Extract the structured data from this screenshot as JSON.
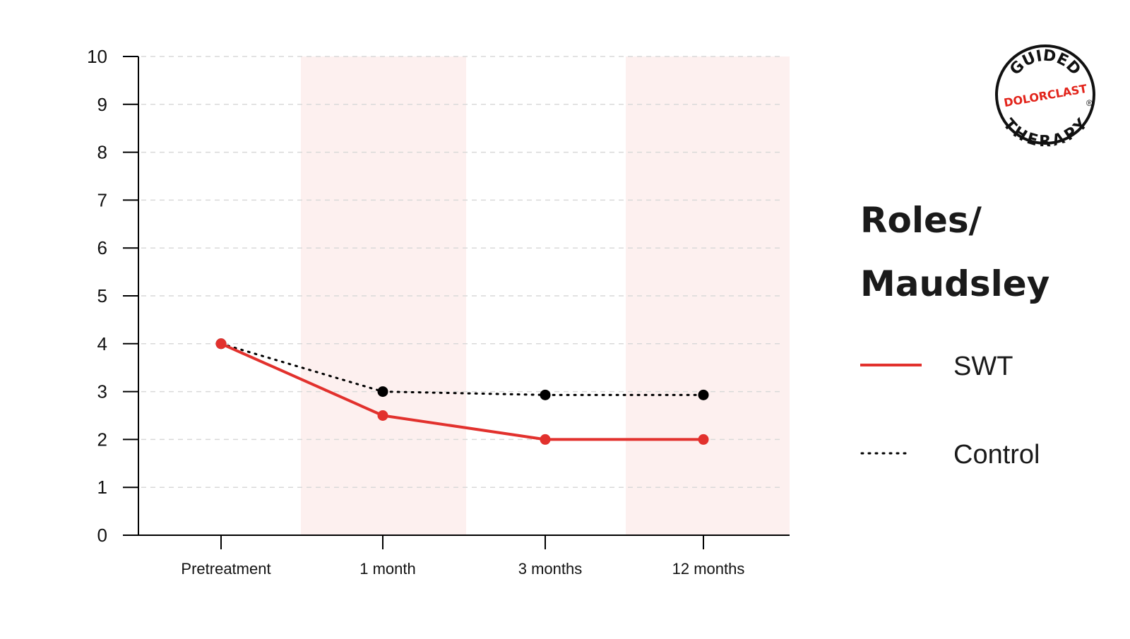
{
  "title_lines": [
    "Roles/",
    "Maudsley"
  ],
  "logo": {
    "top_text": "GUIDED",
    "middle_text": "DOLORCLAST",
    "bottom_text": "THERAPY",
    "registered_mark": "®"
  },
  "legend": [
    {
      "label": "SWT",
      "style": "solid",
      "color": "#e2312d"
    },
    {
      "label": "Control",
      "style": "dotted",
      "color": "#000000"
    }
  ],
  "colors": {
    "swt": "#e2312d",
    "control": "#000000",
    "band": "#fdf0ef",
    "grid": "#d9d9d9",
    "axis": "#000000"
  },
  "chart_data": {
    "type": "line",
    "categories": [
      "Pretreatment",
      "1 month",
      "3 months",
      "12 months"
    ],
    "yticks": [
      "0",
      "1",
      "2",
      "3",
      "4",
      "5",
      "6",
      "7",
      "8",
      "9",
      "10"
    ],
    "ylim": [
      0,
      10
    ],
    "grid": true,
    "shaded_categories": [
      "1 month",
      "12 months"
    ],
    "legend_position": "right",
    "series": [
      {
        "name": "SWT",
        "style": "solid",
        "color": "#e2312d",
        "values": [
          4.0,
          2.5,
          2.0,
          2.0
        ]
      },
      {
        "name": "Control",
        "style": "dotted",
        "color": "#000000",
        "values": [
          4.0,
          3.0,
          2.93,
          2.93
        ]
      }
    ]
  }
}
